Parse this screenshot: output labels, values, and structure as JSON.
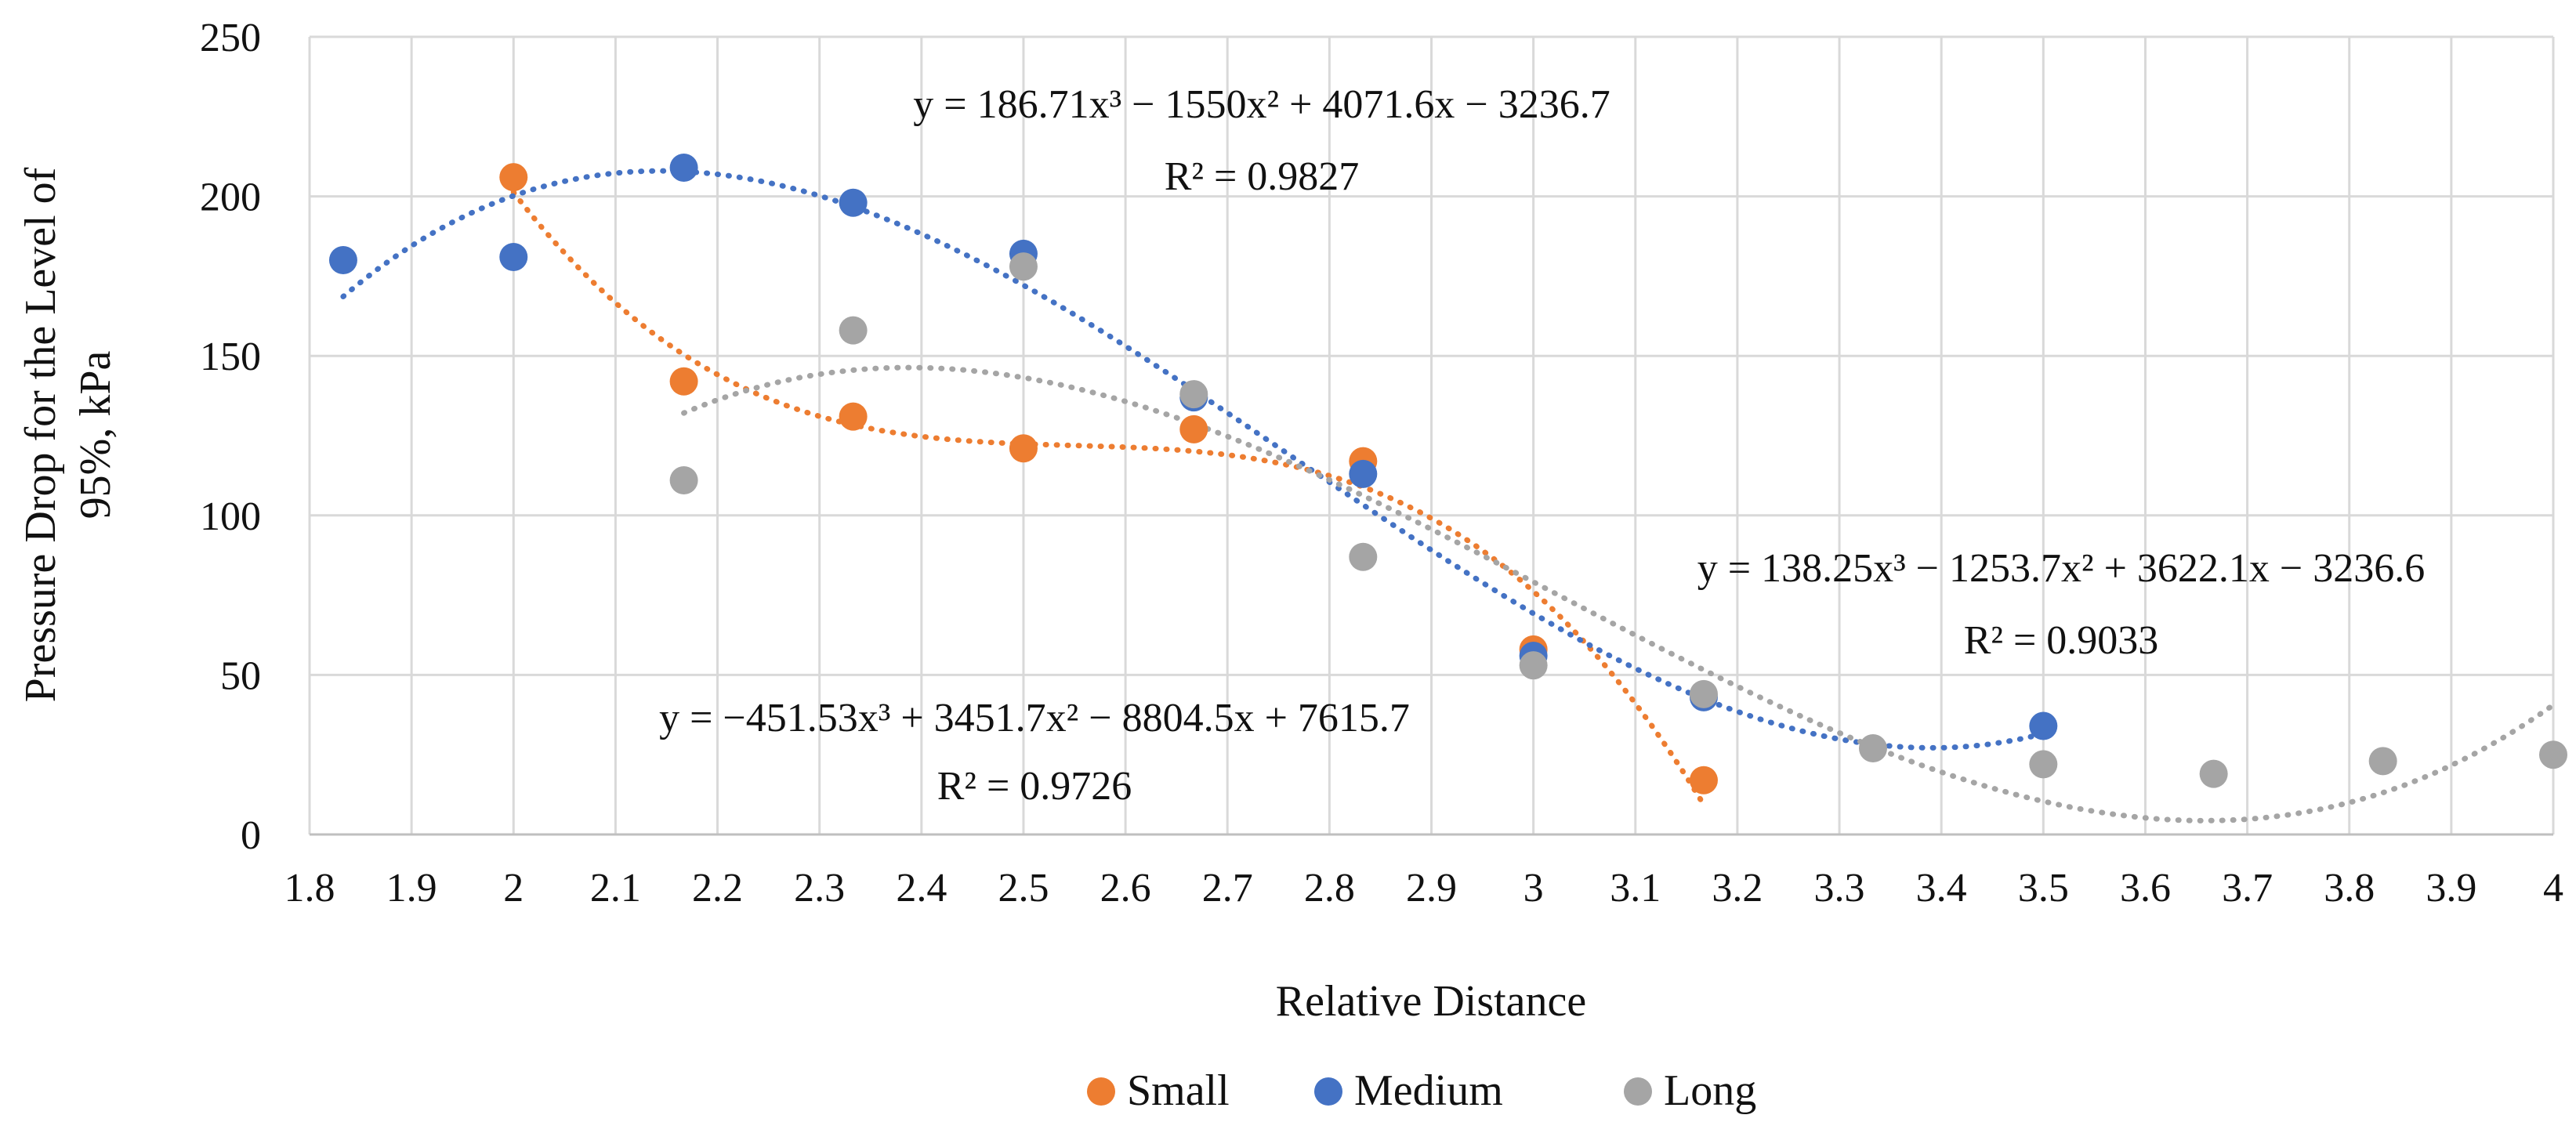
{
  "chart_data": {
    "type": "scatter",
    "title": "",
    "xlabel": "Relative Distance",
    "ylabel_lines": [
      "Pressure Drop for the Level of",
      "95%, kPa"
    ],
    "xlim": [
      1.8,
      4
    ],
    "ylim": [
      0,
      250
    ],
    "x_ticks": [
      1.8,
      1.9,
      2,
      2.1,
      2.2,
      2.3,
      2.4,
      2.5,
      2.6,
      2.7,
      2.8,
      2.9,
      3,
      3.1,
      3.2,
      3.3,
      3.4,
      3.5,
      3.6,
      3.7,
      3.8,
      3.9,
      4
    ],
    "y_ticks": [
      0,
      50,
      100,
      150,
      200,
      250
    ],
    "grid": true,
    "legend_position": "bottom",
    "series": [
      {
        "name": "Small",
        "color": "#ED7D31",
        "points": [
          [
            2,
            206
          ],
          [
            2.167,
            142
          ],
          [
            2.333,
            131
          ],
          [
            2.5,
            121
          ],
          [
            2.667,
            127
          ],
          [
            2.833,
            117
          ],
          [
            3,
            58
          ],
          [
            3.167,
            17
          ]
        ],
        "trend": {
          "coef": [
            -451.53,
            3451.7,
            -8804.5,
            7615.7
          ],
          "range": [
            2,
            3.167
          ]
        },
        "equation": "y = −451.53x³ + 3451.7x² − 8804.5x + 7615.7",
        "r2": "R² = 0.9726"
      },
      {
        "name": "Medium",
        "color": "#4472C4",
        "points": [
          [
            1.833,
            180
          ],
          [
            2,
            181
          ],
          [
            2.167,
            209
          ],
          [
            2.333,
            198
          ],
          [
            2.5,
            182
          ],
          [
            2.667,
            137
          ],
          [
            2.833,
            113
          ],
          [
            3,
            56
          ],
          [
            3.167,
            43
          ],
          [
            3.5,
            34
          ]
        ],
        "trend": {
          "coef": [
            186.71,
            -1550,
            4071.6,
            -3236.7
          ],
          "range": [
            1.833,
            3.5
          ]
        },
        "equation": "y = 186.71x³ − 1550x² + 4071.6x − 3236.7",
        "r2": "R² = 0.9827"
      },
      {
        "name": "Long",
        "color": "#A5A5A5",
        "points": [
          [
            2.167,
            111
          ],
          [
            2.333,
            158
          ],
          [
            2.5,
            178
          ],
          [
            2.667,
            138
          ],
          [
            2.833,
            87
          ],
          [
            3,
            53
          ],
          [
            3.167,
            44
          ],
          [
            3.333,
            27
          ],
          [
            3.5,
            22
          ],
          [
            3.667,
            19
          ],
          [
            3.833,
            23
          ],
          [
            4,
            25
          ]
        ],
        "trend": {
          "coef": [
            138.25,
            -1253.7,
            3622.1,
            -3236.6
          ],
          "range": [
            2.167,
            4
          ]
        },
        "equation": "y = 138.25x³ − 1253.7x² + 3622.1x − 3236.6",
        "r2": "R² = 0.9033"
      }
    ]
  }
}
